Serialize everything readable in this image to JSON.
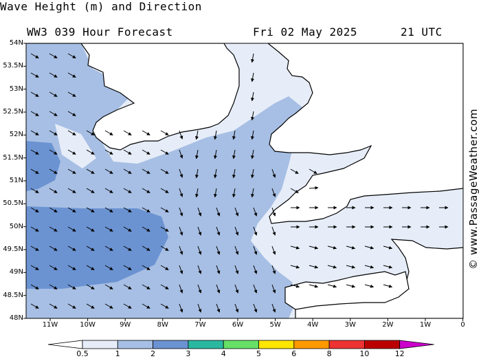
{
  "header": {
    "title": "Wave Height (m) and Direction",
    "model": "WW3 039 Hour Forecast",
    "date": "Fri 02 May 2025",
    "time": "21 UTC"
  },
  "watermark": "© www.PassageWeather.com",
  "axes": {
    "lat_labels": [
      "54N",
      "53.5N",
      "53N",
      "52.5N",
      "52N",
      "51.5N",
      "51N",
      "50.5N",
      "50N",
      "49.5N",
      "49N",
      "48.5N",
      "48N"
    ],
    "lon_labels": [
      "11W",
      "10W",
      "9W",
      "8W",
      "7W",
      "6W",
      "5W",
      "4W",
      "3W",
      "2W",
      "1W",
      "0"
    ]
  },
  "legend": {
    "labels": [
      "0.5",
      "1",
      "2",
      "3",
      "4",
      "5",
      "6",
      "8",
      "10",
      "12"
    ],
    "colors": [
      "#ffffff",
      "#e6edf8",
      "#a7bfe4",
      "#6b93d2",
      "#2ab8a0",
      "#66e066",
      "#ffe600",
      "#ff9900",
      "#ee3333",
      "#bb0000",
      "#cc00cc"
    ]
  },
  "map": {
    "region": "Celtic Sea / English Channel",
    "wave_colors": {
      "land": "#ffffff",
      "band_0_5_1": "#e6edf8",
      "band_1_2": "#a7bfe4",
      "band_2_3": "#6b93d2"
    }
  }
}
